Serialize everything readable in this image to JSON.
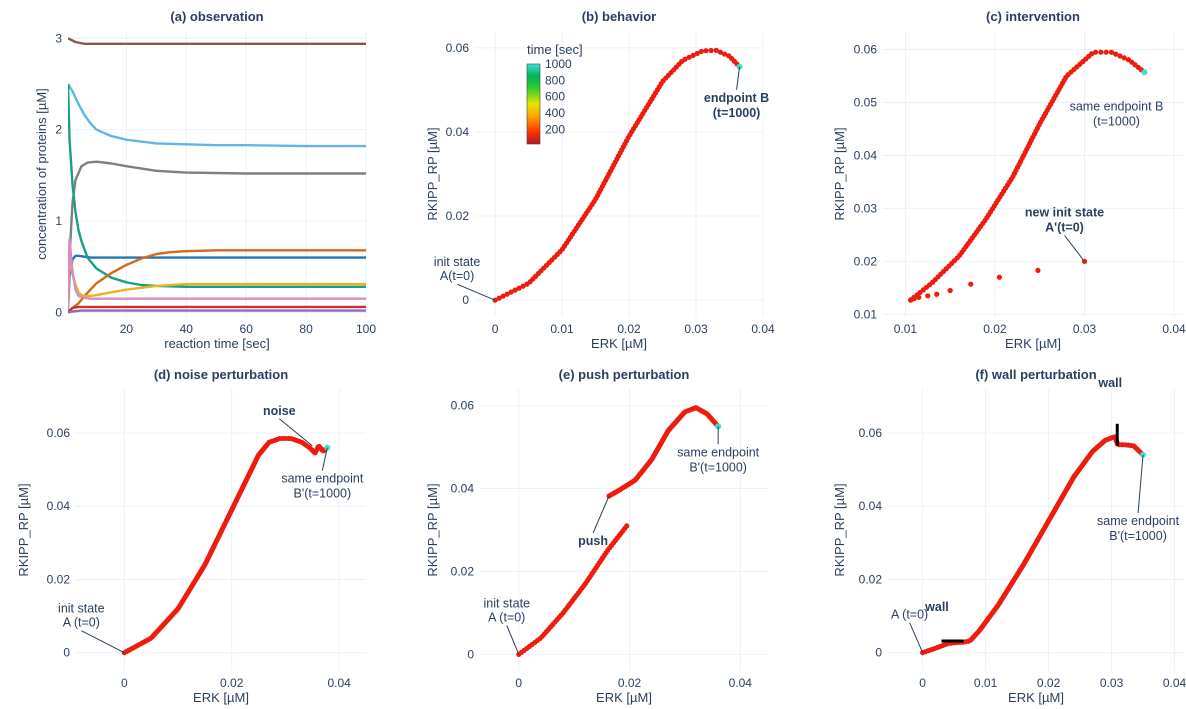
{
  "chart_data": [
    {
      "id": "a",
      "type": "line",
      "title": "(a) observation",
      "xlabel": "reaction time [sec]",
      "ylabel": "concentration of proteins [µM]",
      "xlim": [
        0.5,
        100
      ],
      "ylim": [
        -0.05,
        3.08
      ],
      "xticks": [
        20,
        40,
        60,
        80,
        100
      ],
      "yticks": [
        0,
        1,
        2,
        3
      ],
      "grid": true,
      "series": [
        {
          "color": "#8c564b",
          "x": [
            0.5,
            3,
            6,
            10,
            20,
            40,
            60,
            80,
            100
          ],
          "values": [
            3.0,
            2.96,
            2.94,
            2.94,
            2.94,
            2.94,
            2.94,
            2.94,
            2.94
          ]
        },
        {
          "color": "#5fb6e6",
          "x": [
            0.5,
            2,
            4,
            6,
            8,
            10,
            15,
            20,
            30,
            40,
            50,
            60,
            80,
            100
          ],
          "values": [
            2.5,
            2.42,
            2.28,
            2.16,
            2.07,
            2.0,
            1.93,
            1.89,
            1.85,
            1.84,
            1.83,
            1.83,
            1.82,
            1.82
          ]
        },
        {
          "color": "#7f7f7f",
          "x": [
            0.5,
            1,
            2,
            3,
            5,
            7,
            10,
            15,
            20,
            30,
            40,
            60,
            80,
            100
          ],
          "values": [
            0.0,
            0.6,
            1.2,
            1.45,
            1.6,
            1.64,
            1.65,
            1.63,
            1.6,
            1.55,
            1.53,
            1.52,
            1.52,
            1.52
          ]
        },
        {
          "color": "#1f77b4",
          "x": [
            0.5,
            1,
            2,
            3,
            4,
            6,
            8,
            10,
            20,
            40,
            60,
            80,
            100
          ],
          "values": [
            0.0,
            0.4,
            0.58,
            0.62,
            0.62,
            0.61,
            0.6,
            0.6,
            0.6,
            0.6,
            0.6,
            0.6,
            0.6
          ]
        },
        {
          "color": "#16a085",
          "x": [
            0.5,
            1,
            2,
            3,
            4,
            5,
            7,
            10,
            15,
            20,
            25,
            30,
            40,
            60,
            80,
            100
          ],
          "values": [
            2.5,
            1.9,
            1.4,
            1.1,
            0.9,
            0.78,
            0.6,
            0.48,
            0.38,
            0.33,
            0.3,
            0.29,
            0.28,
            0.28,
            0.28,
            0.28
          ]
        },
        {
          "color": "#d2691e",
          "x": [
            0.5,
            2,
            4,
            6,
            8,
            10,
            15,
            20,
            25,
            30,
            35,
            40,
            50,
            60,
            80,
            100
          ],
          "values": [
            0.0,
            0.05,
            0.1,
            0.18,
            0.25,
            0.32,
            0.43,
            0.52,
            0.59,
            0.64,
            0.66,
            0.67,
            0.68,
            0.68,
            0.68,
            0.68
          ]
        },
        {
          "color": "#e6b41e",
          "x": [
            0.5,
            1,
            2,
            3,
            4,
            5,
            6,
            8,
            10,
            15,
            20,
            30,
            40,
            60,
            100
          ],
          "values": [
            0.0,
            0.6,
            0.42,
            0.3,
            0.22,
            0.19,
            0.18,
            0.18,
            0.19,
            0.22,
            0.25,
            0.29,
            0.31,
            0.31,
            0.31
          ]
        },
        {
          "color": "#d98bbf",
          "x": [
            0.5,
            1,
            2,
            3,
            4,
            6,
            8,
            10,
            20,
            40,
            60,
            80,
            100
          ],
          "values": [
            0.0,
            0.8,
            0.45,
            0.25,
            0.18,
            0.16,
            0.15,
            0.15,
            0.15,
            0.15,
            0.15,
            0.15,
            0.15
          ]
        },
        {
          "color": "#c0392b",
          "x": [
            0.5,
            2,
            4,
            8,
            20,
            40,
            60,
            80,
            100
          ],
          "values": [
            0.0,
            0.05,
            0.06,
            0.06,
            0.06,
            0.06,
            0.06,
            0.06,
            0.06
          ]
        },
        {
          "color": "#9467bd",
          "x": [
            0.5,
            2,
            5,
            10,
            20,
            40,
            60,
            80,
            100
          ],
          "values": [
            0.0,
            0.01,
            0.02,
            0.02,
            0.02,
            0.02,
            0.02,
            0.02,
            0.02
          ]
        }
      ]
    },
    {
      "id": "b",
      "type": "scatter",
      "title": "(b) behavior",
      "xlabel": "ERK [µM]",
      "ylabel": "RKIPP_RP [µM]",
      "xlim": [
        -0.003,
        0.04
      ],
      "ylim": [
        -0.004,
        0.064
      ],
      "xticks": [
        0,
        0.01,
        0.02,
        0.03,
        0.04
      ],
      "xticklabels": [
        "0",
        "0.01",
        "0.02",
        "0.03",
        "0.04"
      ],
      "yticks": [
        0,
        0.02,
        0.04,
        0.06
      ],
      "yticklabels": [
        "0",
        "0.02",
        "0.04",
        "0.06"
      ],
      "grid": true,
      "colorbar": {
        "title": "time [sec]",
        "ticks": [
          200,
          400,
          600,
          800,
          1000
        ],
        "ticklabels": [
          "200",
          "400",
          "600",
          "800",
          "1000"
        ]
      },
      "series": [
        {
          "segments": [
            {
              "x": [
                0.0,
                0.005,
                0.01,
                0.015,
                0.02,
                0.025,
                0.028,
                0.031,
                0.033,
                0.035,
                0.0365
              ],
              "y": [
                0.0,
                0.004,
                0.012,
                0.024,
                0.039,
                0.052,
                0.057,
                0.0593,
                0.0594,
                0.058,
                0.0555
              ]
            }
          ],
          "color": "#ee1c0e",
          "endpoint": [
            0.0365,
            0.0555
          ],
          "endpoint_color": "#40e0d0"
        }
      ],
      "annotations": [
        {
          "text": [
            "init state",
            "A(t=0)"
          ],
          "bold": false,
          "x": 0.0,
          "y": 0.0
        },
        {
          "text": [
            "endpoint B",
            "(t=1000)"
          ],
          "bold": true,
          "x": 0.0365,
          "y": 0.0555
        }
      ]
    },
    {
      "id": "c",
      "type": "scatter",
      "title": "(c) intervention",
      "xlabel": "ERK [µM]",
      "ylabel": "RKIPP_RP [µM]",
      "xlim": [
        0.0075,
        0.041
      ],
      "ylim": [
        0.0095,
        0.0635
      ],
      "xticks": [
        0.01,
        0.02,
        0.03,
        0.04
      ],
      "xticklabels": [
        "0.01",
        "0.02",
        "0.03",
        "0.04"
      ],
      "yticks": [
        0.01,
        0.02,
        0.03,
        0.04,
        0.05,
        0.06
      ],
      "yticklabels": [
        "0.01",
        "0.02",
        "0.03",
        "0.04",
        "0.05",
        "0.06"
      ],
      "grid": true,
      "series": [
        {
          "segments": [
            {
              "x": [
                0.01058,
                0.0107,
                0.011,
                0.0115,
                0.0125,
                0.0135,
                0.015,
                0.0173,
                0.0205,
                0.0248,
                0.03
              ],
              "y": [
                0.0127,
                0.0128,
                0.013,
                0.0132,
                0.0135,
                0.0138,
                0.0145,
                0.0157,
                0.017,
                0.0183,
                0.02
              ],
              "sparse": true
            },
            {
              "x": [
                0.0106,
                0.013,
                0.016,
                0.019,
                0.022,
                0.025,
                0.028,
                0.031,
                0.033,
                0.035,
                0.0367
              ],
              "y": [
                0.0127,
                0.016,
                0.021,
                0.028,
                0.036,
                0.046,
                0.055,
                0.0595,
                0.0595,
                0.058,
                0.0557
              ]
            }
          ],
          "color": "#ee1c0e",
          "endpoint": [
            0.0367,
            0.0557
          ],
          "endpoint_color": "#40e0d0"
        }
      ],
      "annotations": [
        {
          "text": [
            "same endpoint B",
            "(t=1000)"
          ],
          "bold": false,
          "x": 0.0367,
          "y": 0.0557
        },
        {
          "text": [
            "new init state",
            "A'(t=0)"
          ],
          "bold": true,
          "x": 0.03,
          "y": 0.02
        }
      ]
    },
    {
      "id": "d",
      "type": "scatter",
      "title": "(d) noise perturbation",
      "xlabel": "ERK [µM]",
      "ylabel": "RKIPP_RP [µM]",
      "xlim": [
        -0.009,
        0.045
      ],
      "ylim": [
        -0.005,
        0.072
      ],
      "xticks": [
        0,
        0.02,
        0.04
      ],
      "xticklabels": [
        "0",
        "0.02",
        "0.04"
      ],
      "yticks": [
        0,
        0.02,
        0.04,
        0.06
      ],
      "yticklabels": [
        "0",
        "0.02",
        "0.04",
        "0.06"
      ],
      "grid": true,
      "series": [
        {
          "segments": [
            {
              "x": [
                0.0,
                0.005,
                0.01,
                0.015,
                0.02,
                0.023,
                0.025,
                0.027,
                0.029,
                0.031,
                0.033,
                0.0345,
                0.0355,
                0.0362,
                0.037,
                0.0378
              ],
              "y": [
                0.0,
                0.004,
                0.012,
                0.024,
                0.039,
                0.048,
                0.054,
                0.0575,
                0.0585,
                0.0585,
                0.0575,
                0.056,
                0.0545,
                0.0565,
                0.055,
                0.056
              ]
            }
          ],
          "color": "#ee1c0e",
          "endpoint": [
            0.0378,
            0.056
          ],
          "endpoint_color": "#40e0d0"
        }
      ],
      "annotations": [
        {
          "text": [
            "noise"
          ],
          "bold": true,
          "x": 0.035,
          "y": 0.0565
        },
        {
          "text": [
            "same endpoint",
            "B'(t=1000)"
          ],
          "bold": false,
          "x": 0.0378,
          "y": 0.056
        },
        {
          "text": [
            "init state",
            "A (t=0)"
          ],
          "bold": false,
          "x": 0.0,
          "y": 0.0
        }
      ]
    },
    {
      "id": "e",
      "type": "scatter",
      "title": "(e) push perturbation",
      "xlabel": "ERK [µM]",
      "ylabel": "RKIPP_RP [µM]",
      "xlim": [
        -0.007,
        0.045
      ],
      "ylim": [
        -0.004,
        0.064
      ],
      "xticks": [
        0,
        0.02,
        0.04
      ],
      "xticklabels": [
        "0",
        "0.02",
        "0.04"
      ],
      "yticks": [
        0,
        0.02,
        0.04,
        0.06
      ],
      "yticklabels": [
        "0",
        "0.02",
        "0.04",
        "0.06"
      ],
      "grid": true,
      "series": [
        {
          "segments": [
            {
              "x": [
                0.0,
                0.004,
                0.008,
                0.012,
                0.016,
                0.0195
              ],
              "y": [
                0.0,
                0.004,
                0.01,
                0.017,
                0.025,
                0.031
              ]
            },
            {
              "x": [
                0.0163,
                0.018,
                0.021,
                0.024,
                0.027,
                0.03,
                0.032,
                0.034,
                0.036
              ],
              "y": [
                0.0382,
                0.0395,
                0.042,
                0.047,
                0.054,
                0.0585,
                0.0595,
                0.058,
                0.055
              ]
            }
          ],
          "color": "#ee1c0e",
          "endpoint": [
            0.036,
            0.055
          ],
          "endpoint_color": "#40e0d0"
        }
      ],
      "annotations": [
        {
          "text": [
            "same endpoint",
            "B'(t=1000)"
          ],
          "bold": false,
          "x": 0.036,
          "y": 0.055
        },
        {
          "text": [
            "push"
          ],
          "bold": true,
          "x": 0.0163,
          "y": 0.0382
        },
        {
          "text": [
            "init state",
            "A (t=0)"
          ],
          "bold": false,
          "x": 0.0,
          "y": 0.0
        }
      ]
    },
    {
      "id": "f",
      "type": "scatter",
      "title": "(f) wall perturbation",
      "xlabel": "ERK [µM]",
      "ylabel": "RKIPP_RP [µM]",
      "xlim": [
        -0.0055,
        0.0415
      ],
      "ylim": [
        -0.005,
        0.072
      ],
      "xticks": [
        0,
        0.01,
        0.02,
        0.03,
        0.04
      ],
      "xticklabels": [
        "0",
        "0.01",
        "0.02",
        "0.03",
        "0.04"
      ],
      "yticks": [
        0,
        0.02,
        0.04,
        0.06
      ],
      "yticklabels": [
        "0",
        "0.02",
        "0.04",
        "0.06"
      ],
      "grid": true,
      "series": [
        {
          "segments": [
            {
              "x": [
                0.0,
                0.002,
                0.004,
                0.0055,
                0.0065,
                0.0075,
                0.009,
                0.012,
                0.016,
                0.02,
                0.024,
                0.027,
                0.029,
                0.0305,
                0.031,
                0.032,
                0.0335,
                0.035
              ],
              "y": [
                0.0,
                0.0012,
                0.0025,
                0.0028,
                0.0029,
                0.0032,
                0.006,
                0.013,
                0.024,
                0.036,
                0.048,
                0.055,
                0.058,
                0.059,
                0.0568,
                0.0568,
                0.0565,
                0.054
              ]
            }
          ],
          "color": "#ee1c0e",
          "endpoint": [
            0.035,
            0.054
          ],
          "endpoint_color": "#40e0d0"
        }
      ],
      "walls": [
        {
          "x": [
            0.003,
            0.0065
          ],
          "y": [
            0.0032,
            0.0032
          ]
        },
        {
          "x": [
            0.0309,
            0.0309
          ],
          "y": [
            0.0565,
            0.0625
          ]
        }
      ],
      "annotations": [
        {
          "text": [
            "wall"
          ],
          "bold": true,
          "x": 0.0309,
          "y": 0.0625
        },
        {
          "text": [
            "same endpoint",
            "B'(t=1000)"
          ],
          "bold": false,
          "x": 0.035,
          "y": 0.054
        },
        {
          "text": [
            "wall"
          ],
          "bold": true,
          "x": 0.0045,
          "y": 0.0032
        },
        {
          "text": [
            "A (t=0)"
          ],
          "bold": false,
          "x": 0.0,
          "y": 0.0
        }
      ]
    }
  ]
}
